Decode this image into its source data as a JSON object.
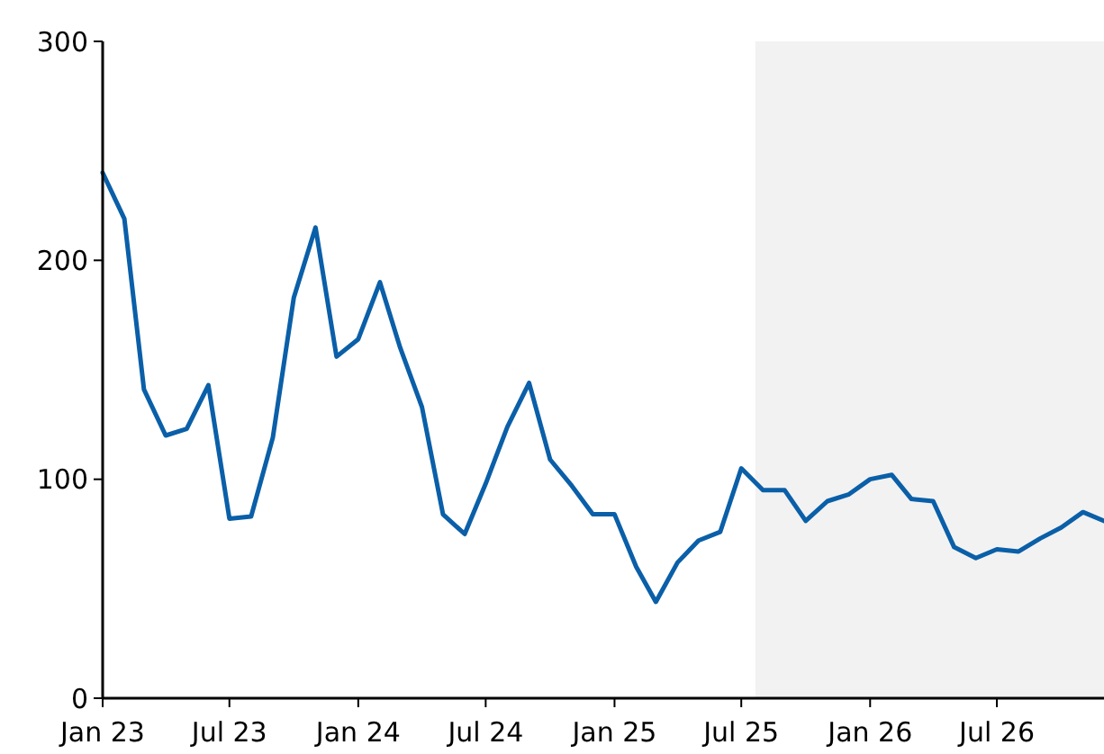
{
  "chart_data": {
    "type": "line",
    "x": [
      "2023-01",
      "2023-02",
      "2023-03",
      "2023-04",
      "2023-05",
      "2023-06",
      "2023-07",
      "2023-08",
      "2023-09",
      "2023-10",
      "2023-11",
      "2023-12",
      "2024-01",
      "2024-02",
      "2024-03",
      "2024-04",
      "2024-05",
      "2024-06",
      "2024-07",
      "2024-08",
      "2024-09",
      "2024-10",
      "2024-11",
      "2024-12",
      "2025-01",
      "2025-02",
      "2025-03",
      "2025-04",
      "2025-05",
      "2025-06",
      "2025-07",
      "2025-08",
      "2025-09",
      "2025-10",
      "2025-11",
      "2025-12",
      "2026-01",
      "2026-02",
      "2026-03",
      "2026-04",
      "2026-05",
      "2026-06",
      "2026-07",
      "2026-08",
      "2026-09",
      "2026-10",
      "2026-11",
      "2026-12"
    ],
    "series": [
      {
        "color": "#0a5fa8",
        "values": [
          240,
          219,
          141,
          120,
          123,
          143,
          82,
          83,
          119,
          183,
          215,
          156,
          164,
          190,
          160,
          133,
          84,
          75,
          98,
          124,
          144,
          109,
          97,
          84,
          84,
          60,
          44,
          62,
          72,
          76,
          105,
          95,
          95,
          81,
          90,
          93,
          100,
          102,
          91,
          90,
          69,
          64,
          68,
          67,
          73,
          78,
          85,
          81
        ]
      }
    ],
    "xlim": [
      "2023-01",
      "2026-12"
    ],
    "xticks": [
      {
        "value": "2023-01",
        "label": "Jan 23"
      },
      {
        "value": "2023-07",
        "label": "Jul 23"
      },
      {
        "value": "2024-01",
        "label": "Jan 24"
      },
      {
        "value": "2024-07",
        "label": "Jul 24"
      },
      {
        "value": "2025-01",
        "label": "Jan 25"
      },
      {
        "value": "2025-07",
        "label": "Jul 25"
      },
      {
        "value": "2026-01",
        "label": "Jan 26"
      },
      {
        "value": "2026-07",
        "label": "Jul 26"
      }
    ],
    "ylim": [
      0,
      300
    ],
    "yticks": [
      0,
      100,
      200,
      300
    ],
    "bands": [
      {
        "axis": "x",
        "from": "2025-07-21",
        "to": "2026-12",
        "color": "#f2f2f2"
      }
    ],
    "grid": false,
    "line_style": "solid",
    "marker": "none"
  }
}
